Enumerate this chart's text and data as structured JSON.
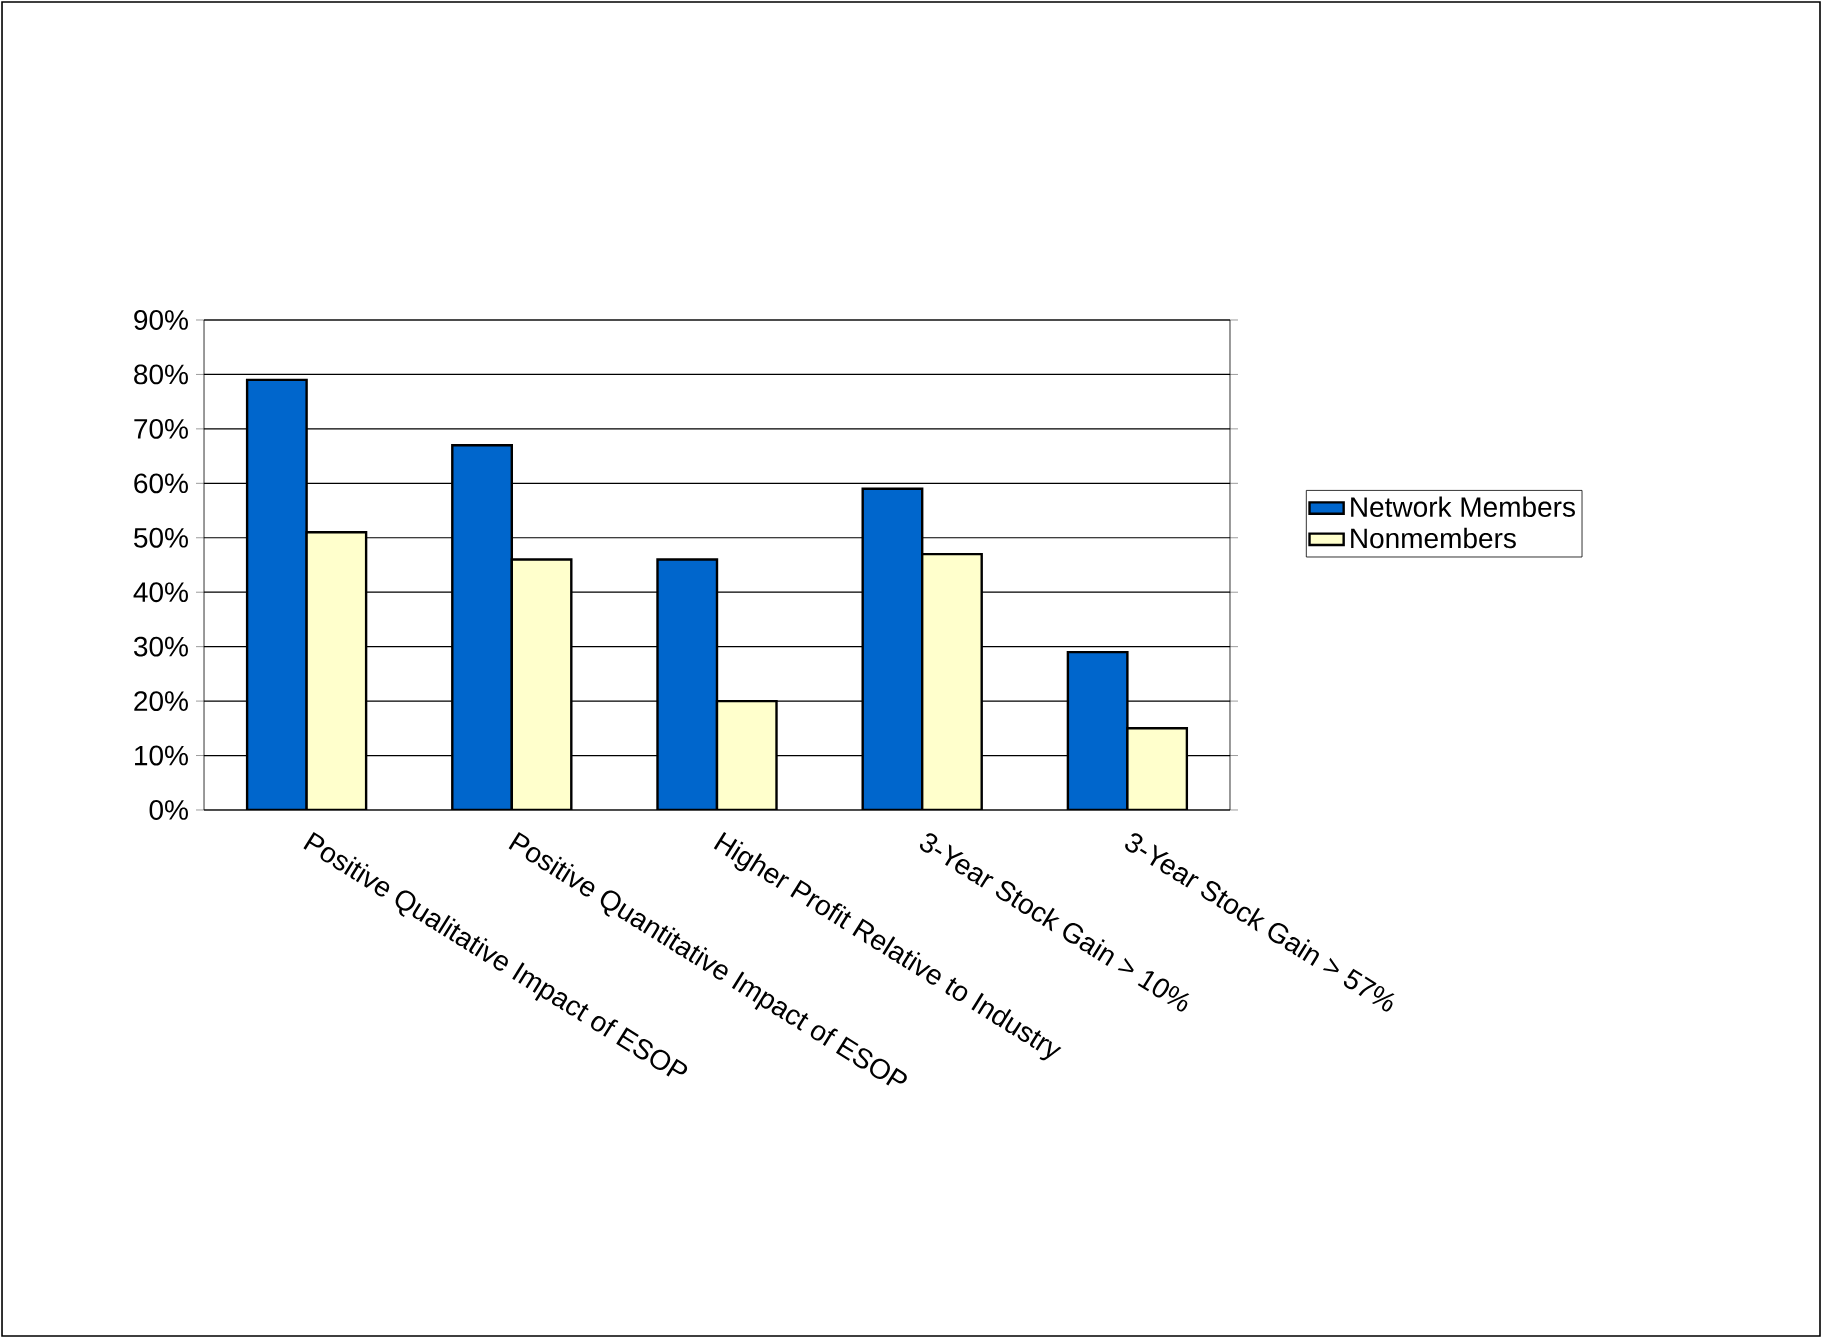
{
  "chart_data": {
    "type": "bar",
    "categories": [
      "Positive Qualitative Impact of ESOP",
      "Positive Quantitative Impact of ESOP",
      "Higher Profit Relative to Industry",
      "3-Year Stock Gain > 10%",
      "3-Year Stock Gain > 57%"
    ],
    "series": [
      {
        "name": "Network Members",
        "color": "#0066cc",
        "values": [
          79,
          67,
          46,
          59,
          29
        ]
      },
      {
        "name": "Nonmembers",
        "color": "#ffffcc",
        "values": [
          51,
          46,
          20,
          47,
          15
        ]
      }
    ],
    "ylim": [
      0,
      90
    ],
    "yticks": [
      {
        "value": 0,
        "label": "0%"
      },
      {
        "value": 10,
        "label": "10%"
      },
      {
        "value": 20,
        "label": "20%"
      },
      {
        "value": 30,
        "label": "30%"
      },
      {
        "value": 40,
        "label": "40%"
      },
      {
        "value": 50,
        "label": "50%"
      },
      {
        "value": 60,
        "label": "60%"
      },
      {
        "value": 70,
        "label": "70%"
      },
      {
        "value": 80,
        "label": "80%"
      },
      {
        "value": 90,
        "label": "90%"
      }
    ],
    "grid": "y",
    "legend": "right"
  }
}
